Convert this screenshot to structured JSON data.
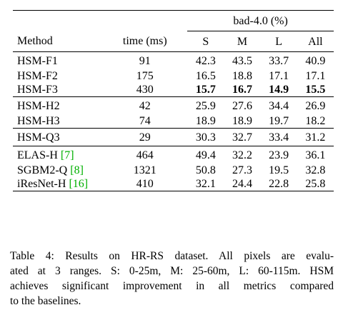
{
  "table": {
    "group_header": "bad-4.0 (%)",
    "columns": {
      "method": "Method",
      "time": "time (ms)",
      "s": "S",
      "m": "M",
      "l": "L",
      "all": "All"
    },
    "groups": [
      {
        "rows": [
          {
            "method": "HSM-F1",
            "ref": "",
            "time": "91",
            "s": "42.3",
            "m": "43.5",
            "l": "33.7",
            "all": "40.9",
            "bold": false
          },
          {
            "method": "HSM-F2",
            "ref": "",
            "time": "175",
            "s": "16.5",
            "m": "18.8",
            "l": "17.1",
            "all": "17.1",
            "bold": false
          },
          {
            "method": "HSM-F3",
            "ref": "",
            "time": "430",
            "s": "15.7",
            "m": "16.7",
            "l": "14.9",
            "all": "15.5",
            "bold": true
          }
        ]
      },
      {
        "rows": [
          {
            "method": "HSM-H2",
            "ref": "",
            "time": "42",
            "s": "25.9",
            "m": "27.6",
            "l": "34.4",
            "all": "26.9",
            "bold": false
          },
          {
            "method": "HSM-H3",
            "ref": "",
            "time": "74",
            "s": "18.9",
            "m": "18.9",
            "l": "19.7",
            "all": "18.2",
            "bold": false
          }
        ]
      },
      {
        "rows": [
          {
            "method": "HSM-Q3",
            "ref": "",
            "time": "29",
            "s": "30.3",
            "m": "32.7",
            "l": "33.4",
            "all": "31.2",
            "bold": false
          }
        ]
      },
      {
        "rows": [
          {
            "method": "ELAS-H ",
            "ref": "[7]",
            "time": "464",
            "s": "49.4",
            "m": "32.2",
            "l": "23.9",
            "all": "36.1",
            "bold": false
          },
          {
            "method": "SGBM2-Q ",
            "ref": "[8]",
            "time": "1321",
            "s": "50.8",
            "m": "27.3",
            "l": "19.5",
            "all": "32.8",
            "bold": false
          },
          {
            "method": "iResNet-H ",
            "ref": "[16]",
            "time": "410",
            "s": "32.1",
            "m": "24.4",
            "l": "22.8",
            "all": "25.8",
            "bold": false
          }
        ]
      }
    ]
  },
  "caption": {
    "lines": [
      "Table 4: Results on HR-RS dataset. All pixels are evalu-",
      "ated at 3 ranges. S: 0-25m, M: 25-60m, L: 60-115m. HSM",
      "achieves significant improvement in all metrics compared",
      "to the baselines."
    ]
  },
  "colors": {
    "text": "#000000",
    "reference_link": "#00b000",
    "background": "#ffffff"
  }
}
